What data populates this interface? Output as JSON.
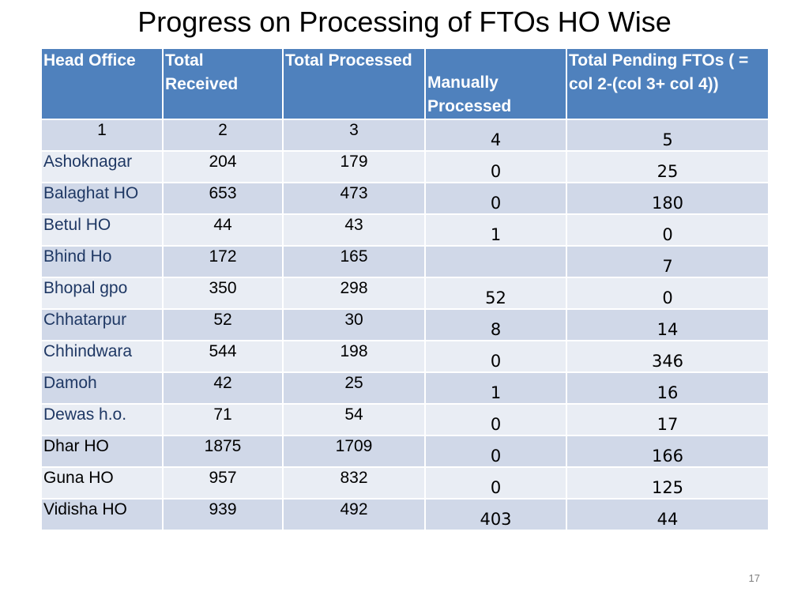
{
  "slide": {
    "title": "Progress on Processing of FTOs HO Wise",
    "page_number": "17"
  },
  "table": {
    "headers": [
      "Head Office",
      "Total Received",
      "Total Processed",
      "Manually Processed",
      "Total Pending FTOs ( = col 2-(col 3+ col 4))"
    ],
    "column_numbers": [
      "1",
      "2",
      "3",
      "4",
      "5"
    ],
    "rows": [
      {
        "name": "Ashoknagar",
        "received": "204",
        "processed": "179",
        "manual": "0",
        "pending": "25"
      },
      {
        "name": "Balaghat HO",
        "received": "653",
        "processed": "473",
        "manual": "0",
        "pending": "180"
      },
      {
        "name": "Betul HO",
        "received": "44",
        "processed": "43",
        "manual": "1",
        "pending": "0"
      },
      {
        "name": "Bhind Ho",
        "received": "172",
        "processed": "165",
        "manual": "",
        "pending": "7"
      },
      {
        "name": "Bhopal gpo",
        "received": "350",
        "processed": "298",
        "manual": "52",
        "pending": "0"
      },
      {
        "name": "Chhatarpur",
        "received": "52",
        "processed": "30",
        "manual": "8",
        "pending": "14"
      },
      {
        "name": "Chhindwara",
        "received": "544",
        "processed": "198",
        "manual": "0",
        "pending": "346"
      },
      {
        "name": "Damoh",
        "received": "42",
        "processed": "25",
        "manual": "1",
        "pending": "16"
      },
      {
        "name": "Dewas h.o.",
        "received": "71",
        "processed": "54",
        "manual": "0",
        "pending": "17"
      },
      {
        "name": "Dhar HO",
        "received": "1875",
        "processed": "1709",
        "manual": "0",
        "pending": "166"
      },
      {
        "name": "Guna HO",
        "received": "957",
        "processed": "832",
        "manual": "0",
        "pending": "125"
      },
      {
        "name": "Vidisha HO",
        "received": "939",
        "processed": "492",
        "manual": "403",
        "pending": "44"
      }
    ]
  },
  "colors": {
    "header_bg": "#4f81bd",
    "row_even": "#d0d8e8",
    "row_odd": "#e9edf4",
    "name_text": "#1f3864"
  }
}
